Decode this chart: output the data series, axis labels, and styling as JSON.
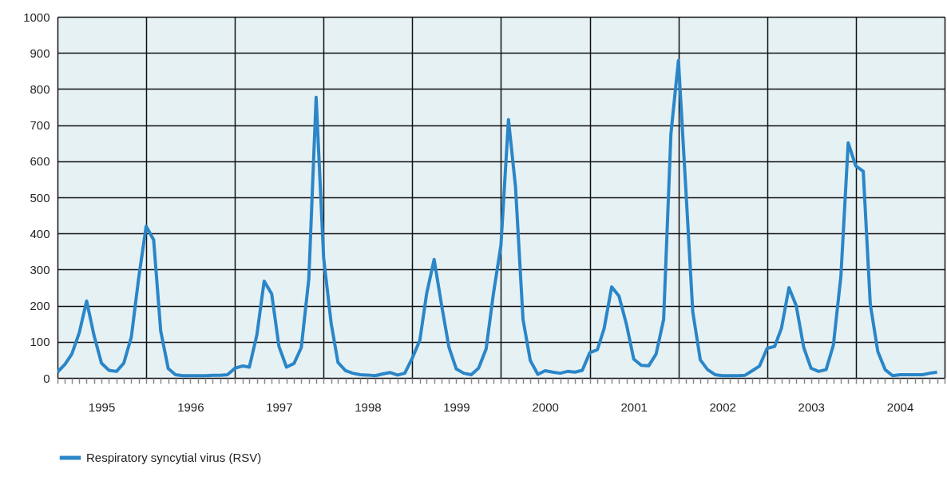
{
  "chart_data": {
    "type": "line",
    "x": [
      "1995-01",
      "1995-02",
      "1995-03",
      "1995-04",
      "1995-05",
      "1995-06",
      "1995-07",
      "1995-08",
      "1995-09",
      "1995-10",
      "1995-11",
      "1995-12",
      "1996-01",
      "1996-02",
      "1996-03",
      "1996-04",
      "1996-05",
      "1996-06",
      "1996-07",
      "1996-08",
      "1996-09",
      "1996-10",
      "1996-11",
      "1996-12",
      "1997-01",
      "1997-02",
      "1997-03",
      "1997-04",
      "1997-05",
      "1997-06",
      "1997-07",
      "1997-08",
      "1997-09",
      "1997-10",
      "1997-11",
      "1997-12",
      "1998-01",
      "1998-02",
      "1998-03",
      "1998-04",
      "1998-05",
      "1998-06",
      "1998-07",
      "1998-08",
      "1998-09",
      "1998-10",
      "1998-11",
      "1998-12",
      "1999-01",
      "1999-02",
      "1999-03",
      "1999-04",
      "1999-05",
      "1999-06",
      "1999-07",
      "1999-08",
      "1999-09",
      "1999-10",
      "1999-11",
      "1999-12",
      "2000-01",
      "2000-02",
      "2000-03",
      "2000-04",
      "2000-05",
      "2000-06",
      "2000-07",
      "2000-08",
      "2000-09",
      "2000-10",
      "2000-11",
      "2000-12",
      "2001-01",
      "2001-02",
      "2001-03",
      "2001-04",
      "2001-05",
      "2001-06",
      "2001-07",
      "2001-08",
      "2001-09",
      "2001-10",
      "2001-11",
      "2001-12",
      "2002-01",
      "2002-02",
      "2002-03",
      "2002-04",
      "2002-05",
      "2002-06",
      "2002-07",
      "2002-08",
      "2002-09",
      "2002-10",
      "2002-11",
      "2002-12",
      "2003-01",
      "2003-02",
      "2003-03",
      "2003-04",
      "2003-05",
      "2003-06",
      "2003-07",
      "2003-08",
      "2003-09",
      "2003-10",
      "2003-11",
      "2003-12",
      "2004-01",
      "2004-02",
      "2004-03",
      "2004-04",
      "2004-05",
      "2004-06",
      "2004-07",
      "2004-08",
      "2004-09",
      "2004-10",
      "2004-11",
      "2004-12"
    ],
    "series": [
      {
        "name": "Respiratory syncytial virus (RSV)",
        "color": "#2a86c8",
        "values": [
          16,
          38,
          66,
          126,
          213,
          116,
          41,
          21,
          18,
          41,
          113,
          275,
          420,
          382,
          130,
          26,
          9,
          6,
          6,
          6,
          6,
          7,
          7,
          9,
          27,
          33,
          30,
          119,
          268,
          233,
          87,
          30,
          40,
          84,
          275,
          777,
          332,
          151,
          43,
          20,
          13,
          9,
          8,
          6,
          11,
          15,
          8,
          13,
          55,
          104,
          233,
          328,
          204,
          85,
          25,
          13,
          9,
          27,
          80,
          233,
          367,
          715,
          530,
          162,
          48,
          10,
          20,
          16,
          13,
          18,
          16,
          21,
          70,
          78,
          137,
          252,
          227,
          148,
          52,
          35,
          34,
          66,
          162,
          676,
          879,
          516,
          183,
          50,
          23,
          9,
          6,
          6,
          6,
          7,
          20,
          33,
          82,
          87,
          137,
          250,
          200,
          84,
          27,
          18,
          23,
          91,
          282,
          651,
          587,
          572,
          204,
          73,
          23,
          6,
          9,
          9,
          9,
          9,
          13,
          16
        ]
      }
    ],
    "xlim": [
      "1995-01",
      "2005-01"
    ],
    "xticks": [
      {
        "value": "1995-01",
        "label": null
      },
      {
        "value": "1995-02",
        "label": null
      },
      {
        "value": "1995-03",
        "label": null
      },
      {
        "value": "1995-04",
        "label": null
      },
      {
        "value": "1995-05",
        "label": null
      },
      {
        "value": "1995-06",
        "label": null
      },
      {
        "value": "1995-07",
        "label": "1995"
      },
      {
        "value": "1995-08",
        "label": null
      },
      {
        "value": "1995-09",
        "label": null
      },
      {
        "value": "1995-10",
        "label": null
      },
      {
        "value": "1995-11",
        "label": null
      },
      {
        "value": "1995-12",
        "label": null
      },
      {
        "value": "1996-01",
        "label": null
      },
      {
        "value": "1996-02",
        "label": null
      },
      {
        "value": "1996-03",
        "label": null
      },
      {
        "value": "1996-04",
        "label": null
      },
      {
        "value": "1996-05",
        "label": null
      },
      {
        "value": "1996-06",
        "label": null
      },
      {
        "value": "1996-07",
        "label": "1996"
      },
      {
        "value": "1996-08",
        "label": null
      },
      {
        "value": "1996-09",
        "label": null
      },
      {
        "value": "1996-10",
        "label": null
      },
      {
        "value": "1996-11",
        "label": null
      },
      {
        "value": "1996-12",
        "label": null
      },
      {
        "value": "1997-01",
        "label": null
      },
      {
        "value": "1997-02",
        "label": null
      },
      {
        "value": "1997-03",
        "label": null
      },
      {
        "value": "1997-04",
        "label": null
      },
      {
        "value": "1997-05",
        "label": null
      },
      {
        "value": "1997-06",
        "label": null
      },
      {
        "value": "1997-07",
        "label": "1997"
      },
      {
        "value": "1997-08",
        "label": null
      },
      {
        "value": "1997-09",
        "label": null
      },
      {
        "value": "1997-10",
        "label": null
      },
      {
        "value": "1997-11",
        "label": null
      },
      {
        "value": "1997-12",
        "label": null
      },
      {
        "value": "1998-01",
        "label": null
      },
      {
        "value": "1998-02",
        "label": null
      },
      {
        "value": "1998-03",
        "label": null
      },
      {
        "value": "1998-04",
        "label": null
      },
      {
        "value": "1998-05",
        "label": null
      },
      {
        "value": "1998-06",
        "label": null
      },
      {
        "value": "1998-07",
        "label": "1998"
      },
      {
        "value": "1998-08",
        "label": null
      },
      {
        "value": "1998-09",
        "label": null
      },
      {
        "value": "1998-10",
        "label": null
      },
      {
        "value": "1998-11",
        "label": null
      },
      {
        "value": "1998-12",
        "label": null
      },
      {
        "value": "1999-01",
        "label": null
      },
      {
        "value": "1999-02",
        "label": null
      },
      {
        "value": "1999-03",
        "label": null
      },
      {
        "value": "1999-04",
        "label": null
      },
      {
        "value": "1999-05",
        "label": null
      },
      {
        "value": "1999-06",
        "label": null
      },
      {
        "value": "1999-07",
        "label": "1999"
      },
      {
        "value": "1999-08",
        "label": null
      },
      {
        "value": "1999-09",
        "label": null
      },
      {
        "value": "1999-10",
        "label": null
      },
      {
        "value": "1999-11",
        "label": null
      },
      {
        "value": "1999-12",
        "label": null
      },
      {
        "value": "2000-01",
        "label": null
      },
      {
        "value": "2000-02",
        "label": null
      },
      {
        "value": "2000-03",
        "label": null
      },
      {
        "value": "2000-04",
        "label": null
      },
      {
        "value": "2000-05",
        "label": null
      },
      {
        "value": "2000-06",
        "label": null
      },
      {
        "value": "2000-07",
        "label": "2000"
      },
      {
        "value": "2000-08",
        "label": null
      },
      {
        "value": "2000-09",
        "label": null
      },
      {
        "value": "2000-10",
        "label": null
      },
      {
        "value": "2000-11",
        "label": null
      },
      {
        "value": "2000-12",
        "label": null
      },
      {
        "value": "2001-01",
        "label": null
      },
      {
        "value": "2001-02",
        "label": null
      },
      {
        "value": "2001-03",
        "label": null
      },
      {
        "value": "2001-04",
        "label": null
      },
      {
        "value": "2001-05",
        "label": null
      },
      {
        "value": "2001-06",
        "label": null
      },
      {
        "value": "2001-07",
        "label": "2001"
      },
      {
        "value": "2001-08",
        "label": null
      },
      {
        "value": "2001-09",
        "label": null
      },
      {
        "value": "2001-10",
        "label": null
      },
      {
        "value": "2001-11",
        "label": null
      },
      {
        "value": "2001-12",
        "label": null
      },
      {
        "value": "2002-01",
        "label": null
      },
      {
        "value": "2002-02",
        "label": null
      },
      {
        "value": "2002-03",
        "label": null
      },
      {
        "value": "2002-04",
        "label": null
      },
      {
        "value": "2002-05",
        "label": null
      },
      {
        "value": "2002-06",
        "label": null
      },
      {
        "value": "2002-07",
        "label": "2002"
      },
      {
        "value": "2002-08",
        "label": null
      },
      {
        "value": "2002-09",
        "label": null
      },
      {
        "value": "2002-10",
        "label": null
      },
      {
        "value": "2002-11",
        "label": null
      },
      {
        "value": "2002-12",
        "label": null
      },
      {
        "value": "2003-01",
        "label": null
      },
      {
        "value": "2003-02",
        "label": null
      },
      {
        "value": "2003-03",
        "label": null
      },
      {
        "value": "2003-04",
        "label": null
      },
      {
        "value": "2003-05",
        "label": null
      },
      {
        "value": "2003-06",
        "label": null
      },
      {
        "value": "2003-07",
        "label": "2003"
      },
      {
        "value": "2003-08",
        "label": null
      },
      {
        "value": "2003-09",
        "label": null
      },
      {
        "value": "2003-10",
        "label": null
      },
      {
        "value": "2003-11",
        "label": null
      },
      {
        "value": "2003-12",
        "label": null
      },
      {
        "value": "2004-01",
        "label": null
      },
      {
        "value": "2004-02",
        "label": null
      },
      {
        "value": "2004-03",
        "label": null
      },
      {
        "value": "2004-04",
        "label": null
      },
      {
        "value": "2004-05",
        "label": null
      },
      {
        "value": "2004-06",
        "label": null
      },
      {
        "value": "2004-07",
        "label": "2004"
      },
      {
        "value": "2004-08",
        "label": null
      },
      {
        "value": "2004-09",
        "label": null
      },
      {
        "value": "2004-10",
        "label": null
      },
      {
        "value": "2004-11",
        "label": null
      },
      {
        "value": "2004-12",
        "label": null
      },
      {
        "value": "2005-01",
        "label": null
      }
    ],
    "ylim": [
      0,
      1000
    ],
    "yticks": [
      0,
      100,
      200,
      300,
      400,
      500,
      600,
      700,
      800,
      900,
      1000
    ],
    "grid": true,
    "legend": "bottom",
    "marker": "none",
    "line_style": "solid"
  }
}
